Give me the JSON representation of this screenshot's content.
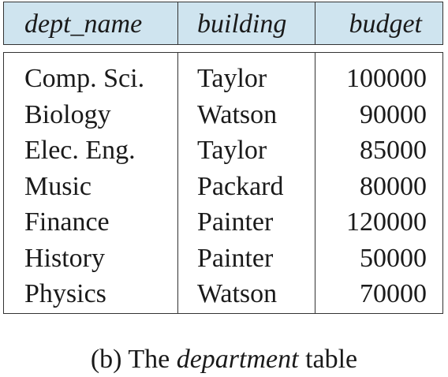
{
  "table": {
    "columns": [
      "dept_name",
      "building",
      "budget"
    ],
    "rows": [
      [
        "Comp. Sci.",
        "Taylor",
        "100000"
      ],
      [
        "Biology",
        "Watson",
        "90000"
      ],
      [
        "Elec. Eng.",
        "Taylor",
        "85000"
      ],
      [
        "Music",
        "Packard",
        "80000"
      ],
      [
        "Finance",
        "Painter",
        "120000"
      ],
      [
        "History",
        "Painter",
        "50000"
      ],
      [
        "Physics",
        "Watson",
        "70000"
      ]
    ],
    "header_color": "#cfe4ef"
  },
  "caption": {
    "prefix": "(b) The",
    "emphasis": "department",
    "suffix": "table"
  }
}
